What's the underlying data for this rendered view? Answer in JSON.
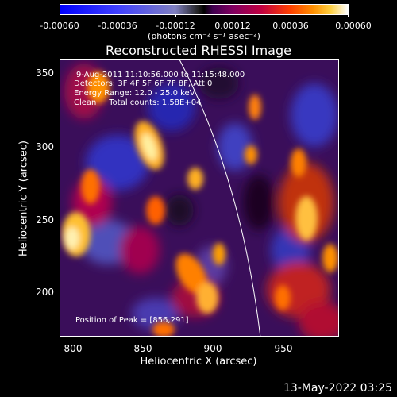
{
  "colorbar": {
    "tick_labels": [
      "-0.00060",
      "-0.00036",
      "-0.00012",
      "0.00012",
      "0.00036",
      "0.00060"
    ],
    "units": "(photons cm⁻² s⁻¹ asec⁻²)"
  },
  "title": "Reconstructed RHESSI Image",
  "annotations": {
    "time": "9-Aug-2011 11:10:56.000 to 11:15:48.000",
    "detectors": "Detectors: 3F 4F 5F 6F 7F 8F, Att 0",
    "energy": "Energy Range: 12.0 - 25.0 keV",
    "clean": "Clean     Total counts: 1.58E+04",
    "peak": "Position of Peak = [856,291]"
  },
  "axes": {
    "x_ticks": [
      "800",
      "850",
      "900",
      "950"
    ],
    "y_ticks": [
      "350",
      "300",
      "250",
      "200"
    ],
    "xlabel": "Heliocentric X (arcsec)",
    "ylabel": "Heliocentric Y (arcsec)"
  },
  "footer": "13-May-2022 03:25"
}
